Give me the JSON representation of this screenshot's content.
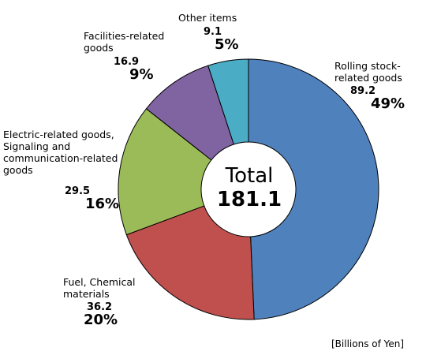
{
  "chart_data": {
    "type": "pie",
    "donut": true,
    "unit_note": "[Billions of Yen]",
    "center_label": "Total",
    "center_value": "181.1",
    "slices": [
      {
        "name": "Rolling stock-\nrelated goods",
        "value": 89.2,
        "value_text": "89.2",
        "percent_text": "49%",
        "color": "#4F81BD"
      },
      {
        "name": "Fuel, Chemical\nmaterials",
        "value": 36.2,
        "value_text": "36.2",
        "percent_text": "20%",
        "color": "#C0504D"
      },
      {
        "name": "Electric-related goods,\nSignaling and\ncommunication-related\ngoods",
        "value": 29.5,
        "value_text": "29.5",
        "percent_text": "16%",
        "color": "#9BBB59"
      },
      {
        "name": "Facilities-related\ngoods",
        "value": 16.9,
        "value_text": "16.9",
        "percent_text": "9%",
        "color": "#8064A2"
      },
      {
        "name": "Other items",
        "value": 9.1,
        "value_text": "9.1",
        "percent_text": "5%",
        "color": "#4BACC6"
      }
    ]
  }
}
